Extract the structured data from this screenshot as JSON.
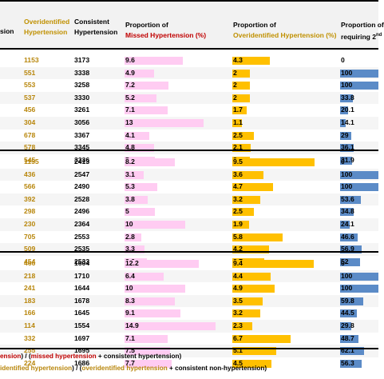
{
  "header": {
    "col1_label": "sion",
    "col2_line1": "Overidentified",
    "col2_line2": "Hypertension",
    "col3_line1": "Consistent",
    "col3_line2": "Hypertension",
    "col4_line1": "Proportion of",
    "col4_line2": "Missed Hypertension (%)",
    "col5_line1": "Proportion of",
    "col5_line2": "Overidentified Hypertension (%)",
    "col6_line1": "Proportion of",
    "col6_line2": "requiring 2",
    "col6_sup": "nd"
  },
  "chart_data": {
    "type": "table",
    "columns": [
      "Overidentified Hypertension",
      "Consistent Hypertension",
      "Proportion of Missed Hypertension (%)",
      "Proportion of Overidentified Hypertension (%)",
      "Proportion of requiring 2nd"
    ],
    "groups": [
      {
        "rows": [
          {
            "overidentified": "1153",
            "consistent": "3173",
            "missed_pct": "9.6",
            "overid_pct": "4.3",
            "second": "0"
          },
          {
            "overidentified": "551",
            "consistent": "3338",
            "missed_pct": "4.9",
            "overid_pct": "2",
            "second": "100"
          },
          {
            "overidentified": "553",
            "consistent": "3258",
            "missed_pct": "7.2",
            "overid_pct": "2",
            "second": "100"
          },
          {
            "overidentified": "537",
            "consistent": "3330",
            "missed_pct": "5.2",
            "overid_pct": "2",
            "second": "33.8"
          },
          {
            "overidentified": "456",
            "consistent": "3261",
            "missed_pct": "7.1",
            "overid_pct": "1.7",
            "second": "20.1"
          },
          {
            "overidentified": "304",
            "consistent": "3056",
            "missed_pct": "13",
            "overid_pct": "1.1",
            "second": "14.1"
          },
          {
            "overidentified": "678",
            "consistent": "3367",
            "missed_pct": "4.1",
            "overid_pct": "2.5",
            "second": "29"
          },
          {
            "overidentified": "578",
            "consistent": "3345",
            "missed_pct": "4.8",
            "overid_pct": "2.1",
            "second": "36.1"
          },
          {
            "overidentified": "545",
            "consistent": "3336",
            "missed_pct": "5",
            "overid_pct": "2",
            "second": "31.9"
          }
        ]
      },
      {
        "rows": [
          {
            "overidentified": "1155",
            "consistent": "2413",
            "missed_pct": "8.2",
            "overid_pct": "9.5",
            "second": "0"
          },
          {
            "overidentified": "436",
            "consistent": "2547",
            "missed_pct": "3.1",
            "overid_pct": "3.6",
            "second": "100"
          },
          {
            "overidentified": "566",
            "consistent": "2490",
            "missed_pct": "5.3",
            "overid_pct": "4.7",
            "second": "100"
          },
          {
            "overidentified": "392",
            "consistent": "2528",
            "missed_pct": "3.8",
            "overid_pct": "3.2",
            "second": "53.6"
          },
          {
            "overidentified": "298",
            "consistent": "2496",
            "missed_pct": "5",
            "overid_pct": "2.5",
            "second": "34.8"
          },
          {
            "overidentified": "230",
            "consistent": "2364",
            "missed_pct": "10",
            "overid_pct": "1.9",
            "second": "24.1"
          },
          {
            "overidentified": "705",
            "consistent": "2553",
            "missed_pct": "2.8",
            "overid_pct": "5.8",
            "second": "46.6"
          },
          {
            "overidentified": "509",
            "consistent": "2535",
            "missed_pct": "3.3",
            "overid_pct": "4.2",
            "second": "56.9"
          },
          {
            "overidentified": "454",
            "consistent": "2533",
            "missed_pct": "3.6",
            "overid_pct": "3.7",
            "second": "52"
          }
        ]
      },
      {
        "rows": [
          {
            "overidentified": "466",
            "consistent": "1604",
            "missed_pct": "12.2",
            "overid_pct": "9.4",
            "second": "0"
          },
          {
            "overidentified": "218",
            "consistent": "1710",
            "missed_pct": "6.4",
            "overid_pct": "4.4",
            "second": "100"
          },
          {
            "overidentified": "241",
            "consistent": "1644",
            "missed_pct": "10",
            "overid_pct": "4.9",
            "second": "100"
          },
          {
            "overidentified": "183",
            "consistent": "1678",
            "missed_pct": "8.3",
            "overid_pct": "3.5",
            "second": "59.8"
          },
          {
            "overidentified": "166",
            "consistent": "1645",
            "missed_pct": "9.1",
            "overid_pct": "3.2",
            "second": "44.5"
          },
          {
            "overidentified": "114",
            "consistent": "1554",
            "missed_pct": "14.9",
            "overid_pct": "2.3",
            "second": "29.8"
          },
          {
            "overidentified": "332",
            "consistent": "1697",
            "missed_pct": "7.1",
            "overid_pct": "6.7",
            "second": "48.7"
          },
          {
            "overidentified": "255",
            "consistent": "1695",
            "missed_pct": "7.5",
            "overid_pct": "5.1",
            "second": "62.1"
          },
          {
            "overidentified": "224",
            "consistent": "1686",
            "missed_pct": "7.7",
            "overid_pct": "4.5",
            "second": "56.3"
          }
        ]
      }
    ],
    "bar_scale_max": {
      "missed_pct": 17,
      "overid_pct": 12,
      "second": 100
    },
    "colors": {
      "missed_bar": "#ffccf2",
      "overid_bar": "#ffc000",
      "second_bar": "#5b8bc7",
      "gold_text": "#b8860b",
      "red_text": "#c00000"
    }
  },
  "footer": {
    "line1": [
      {
        "text": "ension",
        "tone": "red"
      },
      {
        "text": ") / (",
        "tone": "black"
      },
      {
        "text": "missed hypertension",
        "tone": "red"
      },
      {
        "text": " + consistent hypertension)",
        "tone": "black"
      }
    ],
    "line2": [
      {
        "text": "identified hypertension",
        "tone": "gold"
      },
      {
        "text": ") / (",
        "tone": "black"
      },
      {
        "text": "overidentified hypertension",
        "tone": "gold"
      },
      {
        "text": " + consistent non-hypertension)",
        "tone": "black"
      }
    ]
  }
}
